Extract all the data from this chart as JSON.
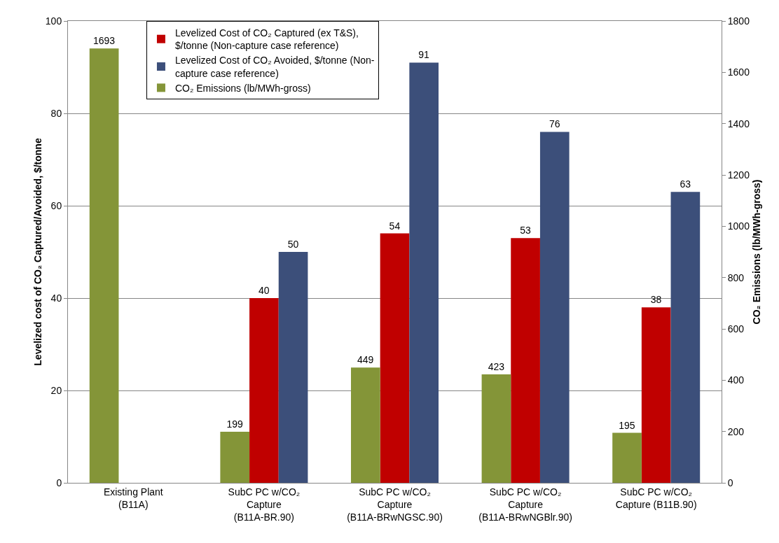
{
  "chart_data": {
    "type": "bar",
    "categories": [
      "Existing Plant\n(B11A)",
      "SubC PC w/CO₂\nCapture\n(B11A-BR.90)",
      "SubC PC w/CO₂\nCapture\n(B11A-BRwNGSC.90)",
      "SubC PC w/CO₂\nCapture\n(B11A-BRwNGBlr.90)",
      "SubC PC w/CO₂\nCapture (B11B.90)"
    ],
    "series": [
      {
        "name": "CO₂ Emissions (lb/MWh-gross)",
        "color": "#849538",
        "axis": "y2",
        "values": [
          1693,
          199,
          449,
          423,
          195
        ]
      },
      {
        "name": "Levelized Cost of CO₂ Captured (ex T&S),\n$/tonne (Non-capture case reference)",
        "color": "#c00000",
        "values": [
          null,
          40,
          54,
          53,
          38
        ]
      },
      {
        "name": "Levelized Cost of CO₂ Avoided, $/tonne (Non-\ncapture case reference)",
        "color": "#3c4f7a",
        "values": [
          null,
          50,
          91,
          76,
          63
        ]
      }
    ],
    "ylabel": "Levelized cost of CO₂ Captured/Avoided, $/tonne",
    "y2label": "CO₂ Emissions (lb/MWh-gross)",
    "ylim": [
      0,
      100
    ],
    "yticks": [
      0,
      20,
      40,
      60,
      80,
      100
    ],
    "y2lim": [
      0,
      1800
    ],
    "y2ticks": [
      0,
      200,
      400,
      600,
      800,
      1000,
      1200,
      1400,
      1600,
      1800
    ],
    "grid": "y",
    "legend": "top",
    "data_labels": true
  }
}
